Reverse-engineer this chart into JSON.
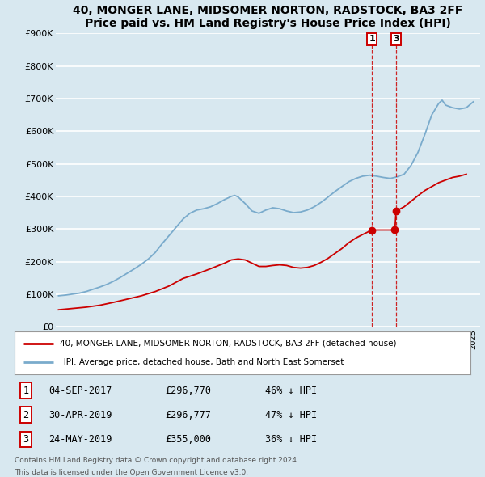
{
  "title": "40, MONGER LANE, MIDSOMER NORTON, RADSTOCK, BA3 2FF",
  "subtitle": "Price paid vs. HM Land Registry's House Price Index (HPI)",
  "ylim": [
    0,
    900000
  ],
  "yticks": [
    0,
    100000,
    200000,
    300000,
    400000,
    500000,
    600000,
    700000,
    800000,
    900000
  ],
  "ytick_labels": [
    "£0",
    "£100K",
    "£200K",
    "£300K",
    "£400K",
    "£500K",
    "£600K",
    "£700K",
    "£800K",
    "£900K"
  ],
  "xlim_start": 1994.8,
  "xlim_end": 2025.5,
  "background_color": "#d8e8f0",
  "grid_color": "#ffffff",
  "red_line_color": "#cc0000",
  "blue_line_color": "#7aabcc",
  "sale_points": [
    {
      "year": 2017.67,
      "price": 296770,
      "label": "1"
    },
    {
      "year": 2019.33,
      "price": 296777,
      "label": "2"
    },
    {
      "year": 2019.42,
      "price": 355000,
      "label": "3"
    }
  ],
  "vline_years": [
    2017.67,
    2019.42
  ],
  "vline_labels": [
    "1",
    "3"
  ],
  "legend_red": "40, MONGER LANE, MIDSOMER NORTON, RADSTOCK, BA3 2FF (detached house)",
  "legend_blue": "HPI: Average price, detached house, Bath and North East Somerset",
  "table_rows": [
    {
      "num": "1",
      "date": "04-SEP-2017",
      "price": "£296,770",
      "hpi": "46% ↓ HPI"
    },
    {
      "num": "2",
      "date": "30-APR-2019",
      "price": "£296,777",
      "hpi": "47% ↓ HPI"
    },
    {
      "num": "3",
      "date": "24-MAY-2019",
      "price": "£355,000",
      "hpi": "36% ↓ HPI"
    }
  ],
  "footnote1": "Contains HM Land Registry data © Crown copyright and database right 2024.",
  "footnote2": "This data is licensed under the Open Government Licence v3.0.",
  "hpi_data": [
    [
      1995.0,
      95000
    ],
    [
      1995.5,
      97000
    ],
    [
      1996.0,
      100000
    ],
    [
      1996.5,
      103000
    ],
    [
      1997.0,
      108000
    ],
    [
      1997.5,
      115000
    ],
    [
      1998.0,
      122000
    ],
    [
      1998.5,
      130000
    ],
    [
      1999.0,
      140000
    ],
    [
      1999.5,
      152000
    ],
    [
      2000.0,
      165000
    ],
    [
      2000.5,
      178000
    ],
    [
      2001.0,
      192000
    ],
    [
      2001.5,
      208000
    ],
    [
      2002.0,
      228000
    ],
    [
      2002.5,
      255000
    ],
    [
      2003.0,
      280000
    ],
    [
      2003.5,
      305000
    ],
    [
      2004.0,
      330000
    ],
    [
      2004.5,
      348000
    ],
    [
      2005.0,
      358000
    ],
    [
      2005.5,
      362000
    ],
    [
      2006.0,
      368000
    ],
    [
      2006.5,
      378000
    ],
    [
      2007.0,
      390000
    ],
    [
      2007.5,
      400000
    ],
    [
      2007.75,
      403000
    ],
    [
      2008.0,
      398000
    ],
    [
      2008.5,
      378000
    ],
    [
      2009.0,
      355000
    ],
    [
      2009.5,
      348000
    ],
    [
      2010.0,
      358000
    ],
    [
      2010.5,
      365000
    ],
    [
      2011.0,
      362000
    ],
    [
      2011.5,
      355000
    ],
    [
      2012.0,
      350000
    ],
    [
      2012.5,
      352000
    ],
    [
      2013.0,
      358000
    ],
    [
      2013.5,
      368000
    ],
    [
      2014.0,
      382000
    ],
    [
      2014.5,
      398000
    ],
    [
      2015.0,
      415000
    ],
    [
      2015.5,
      430000
    ],
    [
      2016.0,
      445000
    ],
    [
      2016.5,
      455000
    ],
    [
      2017.0,
      462000
    ],
    [
      2017.5,
      465000
    ],
    [
      2018.0,
      462000
    ],
    [
      2018.5,
      458000
    ],
    [
      2019.0,
      455000
    ],
    [
      2019.5,
      460000
    ],
    [
      2020.0,
      468000
    ],
    [
      2020.5,
      495000
    ],
    [
      2021.0,
      535000
    ],
    [
      2021.5,
      590000
    ],
    [
      2022.0,
      650000
    ],
    [
      2022.5,
      685000
    ],
    [
      2022.75,
      695000
    ],
    [
      2023.0,
      680000
    ],
    [
      2023.5,
      672000
    ],
    [
      2024.0,
      668000
    ],
    [
      2024.5,
      672000
    ],
    [
      2025.0,
      690000
    ]
  ],
  "red_data": [
    [
      1995.0,
      52000
    ],
    [
      1996.0,
      56000
    ],
    [
      1997.0,
      60000
    ],
    [
      1998.0,
      66000
    ],
    [
      1999.0,
      75000
    ],
    [
      2000.0,
      85000
    ],
    [
      2001.0,
      95000
    ],
    [
      2002.0,
      108000
    ],
    [
      2003.0,
      125000
    ],
    [
      2004.0,
      148000
    ],
    [
      2005.0,
      162000
    ],
    [
      2006.0,
      178000
    ],
    [
      2007.0,
      195000
    ],
    [
      2007.5,
      205000
    ],
    [
      2008.0,
      208000
    ],
    [
      2008.5,
      205000
    ],
    [
      2009.0,
      195000
    ],
    [
      2009.5,
      185000
    ],
    [
      2010.0,
      185000
    ],
    [
      2010.5,
      188000
    ],
    [
      2011.0,
      190000
    ],
    [
      2011.5,
      188000
    ],
    [
      2012.0,
      182000
    ],
    [
      2012.5,
      180000
    ],
    [
      2013.0,
      182000
    ],
    [
      2013.5,
      188000
    ],
    [
      2014.0,
      198000
    ],
    [
      2014.5,
      210000
    ],
    [
      2015.0,
      225000
    ],
    [
      2015.5,
      240000
    ],
    [
      2016.0,
      258000
    ],
    [
      2016.5,
      272000
    ],
    [
      2017.0,
      283000
    ],
    [
      2017.67,
      296770
    ],
    [
      2019.33,
      296777
    ],
    [
      2019.42,
      355000
    ],
    [
      2020.0,
      368000
    ],
    [
      2020.5,
      385000
    ],
    [
      2021.0,
      402000
    ],
    [
      2021.5,
      418000
    ],
    [
      2022.0,
      430000
    ],
    [
      2022.5,
      442000
    ],
    [
      2023.0,
      450000
    ],
    [
      2023.5,
      458000
    ],
    [
      2024.0,
      462000
    ],
    [
      2024.5,
      468000
    ]
  ]
}
